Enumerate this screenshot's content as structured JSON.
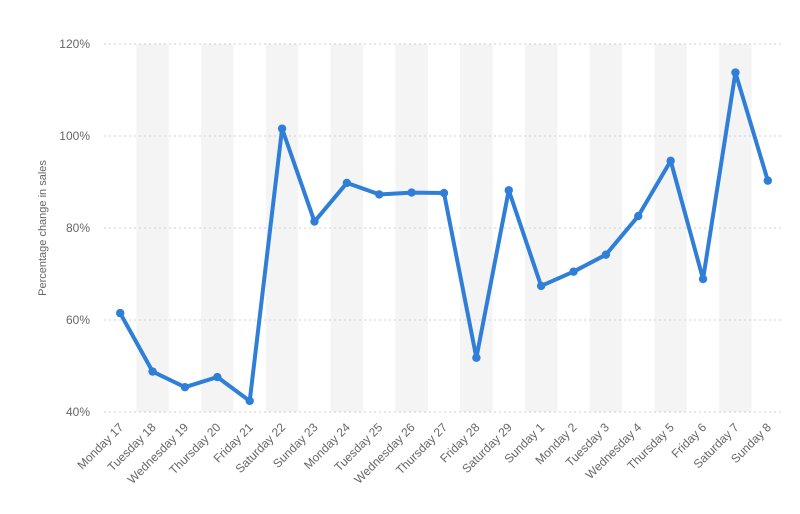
{
  "chart_data": {
    "type": "line",
    "title": "",
    "xlabel": "",
    "ylabel": "Percentage change in sales",
    "ylim": [
      40,
      120
    ],
    "y_ticks": [
      40,
      60,
      80,
      100,
      120
    ],
    "y_tick_format": "%",
    "grid": true,
    "legend": "none",
    "categories": [
      "Monday 17",
      "Tuesday 18",
      "Wednesday 19",
      "Thursday 20",
      "Friday 21",
      "Saturday 22",
      "Sunday 23",
      "Monday 24",
      "Tuesday 25",
      "Wednesday 26",
      "Thursday 27",
      "Friday 28",
      "Saturday 29",
      "Sunday 1",
      "Monday 2",
      "Tuesday 3",
      "Wednesday 4",
      "Thursday 5",
      "Friday 6",
      "Saturday 7",
      "Sunday 8"
    ],
    "series": [
      {
        "color": "#2f7ed8",
        "values": [
          61.5,
          48.8,
          45.4,
          47.6,
          42.4,
          101.6,
          81.4,
          89.8,
          87.3,
          87.7,
          87.6,
          51.8,
          88.2,
          67.4,
          70.5,
          74.2,
          82.6,
          94.6,
          68.9,
          113.8,
          90.3
        ]
      }
    ]
  }
}
